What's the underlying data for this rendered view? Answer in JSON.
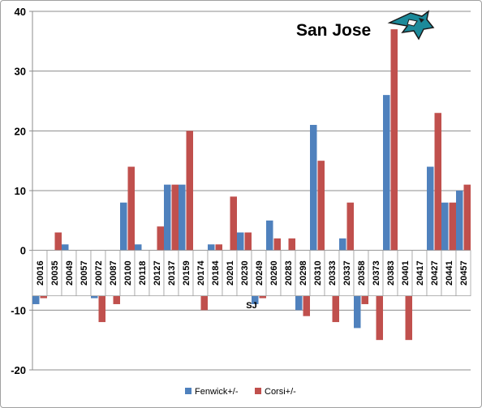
{
  "chart_data": {
    "type": "bar",
    "title": "San Jose",
    "xlabel": "SJ",
    "ylabel": "",
    "ylim": [
      -20,
      40
    ],
    "yticks": [
      -20,
      -10,
      0,
      10,
      20,
      30,
      40
    ],
    "grid": true,
    "legend_position": "bottom",
    "categories": [
      "20016",
      "20035",
      "20049",
      "20057",
      "20072",
      "20087",
      "20100",
      "20118",
      "20127",
      "20137",
      "20159",
      "20174",
      "20184",
      "20201",
      "20230",
      "20249",
      "20260",
      "20283",
      "20298",
      "20310",
      "20333",
      "20337",
      "20358",
      "20373",
      "20383",
      "20401",
      "20417",
      "20427",
      "20441",
      "20457"
    ],
    "series": [
      {
        "name": "Fenwick+/-",
        "color": "#4f81bd",
        "values": [
          -9,
          0,
          1,
          -2,
          -8,
          -5,
          8,
          1,
          -2,
          11,
          11,
          -7,
          1,
          0,
          3,
          -9,
          5,
          0,
          -10,
          21,
          -4,
          2,
          -13,
          -6,
          26,
          -4,
          -7,
          14,
          8,
          10
        ]
      },
      {
        "name": "Corsi+/-",
        "color": "#c0504d",
        "values": [
          -8,
          3,
          -2,
          -6,
          -12,
          -9,
          14,
          -1,
          4,
          11,
          20,
          -10,
          1,
          9,
          3,
          -8,
          2,
          2,
          -11,
          15,
          -12,
          8,
          -9,
          -15,
          37,
          -15,
          0,
          23,
          8,
          11
        ]
      }
    ]
  },
  "logo": {
    "name": "sharks-logo-icon"
  }
}
